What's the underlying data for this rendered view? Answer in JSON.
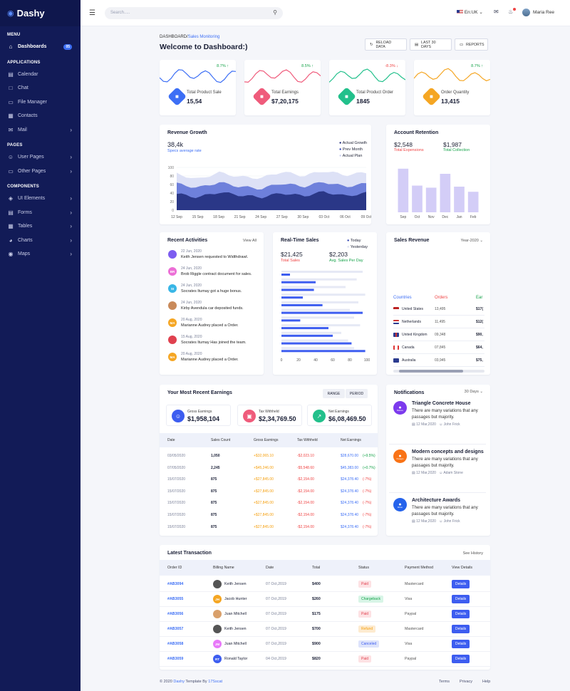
{
  "brand": "Dashy",
  "sidebar": {
    "menu_title": "MENU",
    "apps_title": "APPLICATIONS",
    "pages_title": "PAGES",
    "components_title": "COMPONENTS",
    "dashboards": "Dashboards",
    "dashboards_badge": "05",
    "calendar": "Calendar",
    "chat": "Chat",
    "file_manager": "File Manager",
    "contacts": "Contacts",
    "mail": "Mail",
    "user_pages": "User Pages",
    "other_pages": "Other Pages",
    "ui_elements": "UI Elements",
    "forms": "Forms",
    "tables": "Tables",
    "charts": "Charts",
    "maps": "Maps"
  },
  "topbar": {
    "search_placeholder": "Search.....",
    "language": "En:UK",
    "user_name": "Maria Ree"
  },
  "header": {
    "crumb_root": "DASHBOARD",
    "crumb_current": "Sales Monitoring",
    "title": "Welcome to Dashboard:)",
    "reload": "RELOAD DATA",
    "last30": "LAST 30 DAYS",
    "reports": "REPORTS"
  },
  "stats": [
    {
      "label": "Total Product Sale",
      "value": "15,54",
      "pct": "8.7%",
      "dir": "up",
      "color": "#3d6ff5"
    },
    {
      "label": "Total Earnings",
      "value": "$7,20,175",
      "pct": "8.5%",
      "dir": "up",
      "color": "#ef5b7b"
    },
    {
      "label": "Total Product Order",
      "value": "1845",
      "pct": "-8.3%",
      "dir": "down",
      "color": "#22c08b"
    },
    {
      "label": "Order Quantity",
      "value": "13,415",
      "pct": "8.7%",
      "dir": "up",
      "color": "#f5a623"
    }
  ],
  "revenue": {
    "title": "Revenue Growth",
    "value": "38,4k",
    "sub": "Specs average rate",
    "legend": [
      "Actual Growth",
      "Prev Month",
      "Actual Plan"
    ]
  },
  "chart_data": [
    {
      "type": "area",
      "title": "Revenue Growth",
      "categories": [
        "12 Sep",
        "15 Sep",
        "18 Sep",
        "21 Sep",
        "24 Sep",
        "27 Sep",
        "30 Sep",
        "03 Oct",
        "06 Oct",
        "09 Oct"
      ],
      "series": [
        {
          "name": "Actual Growth",
          "values": [
            38,
            30,
            42,
            35,
            30,
            40,
            33,
            43,
            33,
            40
          ]
        },
        {
          "name": "Prev Month",
          "values": [
            62,
            52,
            65,
            55,
            50,
            63,
            55,
            66,
            55,
            62
          ]
        },
        {
          "name": "Actual Plan",
          "values": [
            85,
            72,
            88,
            78,
            75,
            90,
            80,
            92,
            82,
            88
          ]
        }
      ],
      "ylim": [
        0,
        100
      ],
      "yticks": [
        "100",
        "80",
        "60",
        "40",
        "20",
        "0"
      ]
    },
    {
      "type": "bar",
      "title": "Account Retention",
      "categories": [
        "Sep",
        "Oct",
        "Nov",
        "Dec",
        "Jan",
        "Feb"
      ],
      "values": [
        85,
        52,
        48,
        75,
        50,
        40
      ],
      "ylim": [
        0,
        100
      ]
    },
    {
      "type": "bar",
      "title": "Real-Time Sales",
      "orientation": "horizontal",
      "series": [
        {
          "name": "Today",
          "values": [
            10,
            40,
            38,
            25,
            48,
            95,
            22,
            55,
            60,
            82,
            98
          ]
        },
        {
          "name": "Yesterday",
          "values": [
            95,
            88,
            75,
            98,
            90,
            80,
            85,
            92,
            70,
            78,
            85
          ]
        }
      ],
      "xticks": [
        "0",
        "20",
        "40",
        "60",
        "80",
        "100"
      ],
      "xlim": [
        0,
        100
      ]
    }
  ],
  "retention": {
    "title": "Account Retention",
    "expenses": "$2,548",
    "expenses_label": "Total Expensions",
    "collection": "$1,987",
    "collection_label": "Total Collection"
  },
  "activities": {
    "title": "Recent Activities",
    "view_all": "View All",
    "items": [
      {
        "date": "22 Jun, 2020",
        "text": "Keith Jensen requested to Widthdrawl.",
        "initials": "",
        "color": "#7c5cf0"
      },
      {
        "date": "24 Jun, 2020",
        "text": "Brob Riggle contract document for sales.",
        "initials": "BR",
        "color": "#ec6fd6"
      },
      {
        "date": "24 Jun, 2020",
        "text": "Socrates Itumay got a huge bonus.",
        "initials": "SI",
        "color": "#38b6e6"
      },
      {
        "date": "24 Jun, 2020",
        "text": "Kirby Avendula car deposited funds.",
        "initials": "",
        "color": "#c98a5a"
      },
      {
        "date": "20 Aug, 2020",
        "text": "Marianne Audrey placed a Order.",
        "initials": "MA",
        "color": "#f5a623"
      },
      {
        "date": "15 Aug, 2020",
        "text": "Socrates Itumay Has joined the team.",
        "initials": "",
        "color": "#e0414f"
      },
      {
        "date": "20 Aug, 2020",
        "text": "Marianne Audrey placed a Order.",
        "initials": "MA",
        "color": "#f5a623"
      }
    ]
  },
  "realtime": {
    "title": "Real-Time Sales",
    "today": "Today",
    "yesterday": "Yesterday",
    "v1": "$21,425",
    "v1_label": "Total Sales",
    "v2": "$2,203",
    "v2_label": "Avg. Sales Per Day"
  },
  "salesrev": {
    "title": "Sales Revenue",
    "year": "Year-2020",
    "col_countries": "Countries",
    "col_orders": "Orders",
    "col_ear": "Ear",
    "rows": [
      {
        "country": "United States",
        "orders": "13,495",
        "ear": "$17("
      },
      {
        "country": "Netherlands",
        "orders": "11,495",
        "ear": "$12("
      },
      {
        "country": "United Kingdom",
        "orders": "09,348",
        "ear": "$90,"
      },
      {
        "country": "Canada",
        "orders": "07,845",
        "ear": "$64,"
      },
      {
        "country": "Australia",
        "orders": "03,945",
        "ear": "$75,"
      }
    ]
  },
  "earnings": {
    "title": "Your Most Recent Earnings",
    "range": "RANGE",
    "period": "PERIOD",
    "gross_label": "Gross Earnings",
    "gross": "$1,958,104",
    "tax_label": "Tax Withheld",
    "tax": "$2,34,769.50",
    "net_label": "Net Earnings",
    "net": "$6,08,469.50",
    "headers": [
      "Date",
      "Sales Count",
      "Gross Earnings",
      "Tax Withheld",
      "Net Earnings"
    ],
    "rows": [
      [
        "03/05/2020",
        "1,050",
        "+$32,065.10",
        "-$2,023.10",
        "$28,670.00",
        "(+9.5%)"
      ],
      [
        "07/05/2020",
        "2,245",
        "+$45,246.00",
        "-$5,548.60",
        "$45,383.00",
        "(+0.7%)"
      ],
      [
        "15/07/2020",
        "875",
        "+$27,845.00",
        "-$2,154.00",
        "$24,378.40",
        "(-7%)"
      ],
      [
        "15/07/2020",
        "875",
        "+$27,845.00",
        "-$2,154.00",
        "$24,378.40",
        "(-7%)"
      ],
      [
        "15/07/2020",
        "875",
        "+$27,845.00",
        "-$2,154.00",
        "$24,378.40",
        "(-7%)"
      ],
      [
        "15/07/2020",
        "875",
        "+$27,845.00",
        "-$2,154.00",
        "$24,378.40",
        "(-7%)"
      ],
      [
        "15/07/2020",
        "875",
        "+$27,845.00",
        "-$2,154.00",
        "$24,378.40",
        "(-7%)"
      ]
    ]
  },
  "notifications": {
    "title": "Notifications",
    "period": "30 Days",
    "items": [
      {
        "title": "Triangle Concrete House",
        "text": "There are many variations that any passages but majority.",
        "date": "12 Mar,2020",
        "author": "John Frick",
        "color": "#7c3aed",
        "icon": "Balance"
      },
      {
        "title": "Modern concepts and designs",
        "text": "There are many variations that any passages but majority.",
        "date": "12 Mar,2020",
        "author": "Adam Stone",
        "color": "#f97316",
        "icon": "Hexagon"
      },
      {
        "title": "Architecture Awards",
        "text": "There are many variations that any passages but majority.",
        "date": "12 Mar,2020",
        "author": "John Frick",
        "color": "#2563eb",
        "icon": "Winter"
      }
    ]
  },
  "transactions": {
    "title": "Latest Transaction",
    "see_history": "See History",
    "headers": [
      "Order ID",
      "Billing Name",
      "Date",
      "Total",
      "Status",
      "Payment Method",
      "View Details"
    ],
    "details": "Details",
    "rows": [
      {
        "id": "#AB3094",
        "name": "Keith Jensen",
        "initials": "",
        "avcolor": "#555",
        "date": "07 Oct,2019",
        "total": "$400",
        "status": "Paid",
        "method": "Mastercard"
      },
      {
        "id": "#AB3055",
        "name": "Jacob Hunter",
        "initials": "JH",
        "avcolor": "#f5a623",
        "date": "07 Oct,2019",
        "total": "$260",
        "status": "Chargeback",
        "method": "Visa"
      },
      {
        "id": "#AB3056",
        "name": "Juan Mitchell",
        "initials": "",
        "avcolor": "#d9a06b",
        "date": "07 Oct,2019",
        "total": "$175",
        "status": "Paid",
        "method": "Paypal"
      },
      {
        "id": "#AB3057",
        "name": "Keith Jensen",
        "initials": "",
        "avcolor": "#555",
        "date": "07 Oct,2019",
        "total": "$700",
        "status": "Refund",
        "method": "Mastercard"
      },
      {
        "id": "#AB3058",
        "name": "Juan Mitchell",
        "initials": "JM",
        "avcolor": "#e879f9",
        "date": "07 Oct,2019",
        "total": "$900",
        "status": "Canceled",
        "method": "Visa"
      },
      {
        "id": "#AB3059",
        "name": "Ronald Taylor",
        "initials": "RT",
        "avcolor": "#3d5df0",
        "date": "04 Oct,2019",
        "total": "$820",
        "status": "Paid",
        "method": "Paypal"
      }
    ]
  },
  "footer": {
    "prefix": "© 2020",
    "brand": "Dashy",
    "middle": "Template By",
    "author": "17Sscat",
    "terms": "Terms",
    "privacy": "Privacy",
    "help": "Help"
  }
}
